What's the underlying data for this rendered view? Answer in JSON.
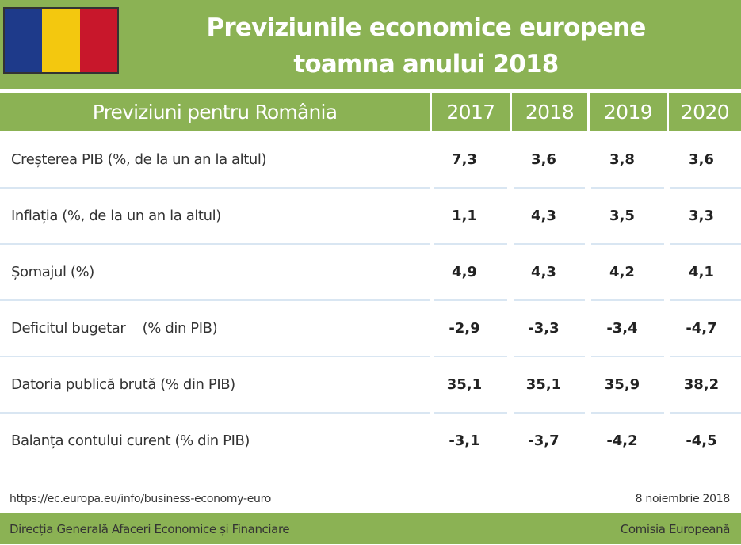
{
  "header": {
    "title_line1": "Previziunile economice europene",
    "title_line2": "toamna anului 2018",
    "flag_colors": [
      "#1e3a8a",
      "#f3c80f",
      "#c8172b"
    ]
  },
  "table": {
    "heading": "Previziuni pentru România",
    "years": [
      "2017",
      "2018",
      "2019",
      "2020"
    ],
    "rows": [
      {
        "label": "Creșterea PIB (%, de la un an la altul)",
        "values": [
          "7,3",
          "3,6",
          "3,8",
          "3,6"
        ]
      },
      {
        "label": "Inflația (%, de la un an la altul)",
        "values": [
          "1,1",
          "4,3",
          "3,5",
          "3,3"
        ]
      },
      {
        "label": "Șomajul (%)",
        "values": [
          "4,9",
          "4,3",
          "4,2",
          "4,1"
        ]
      },
      {
        "label": "Deficitul bugetar    (% din PIB)",
        "values": [
          "-2,9",
          "-3,3",
          "-3,4",
          "-4,7"
        ]
      },
      {
        "label": "Datoria publică brută (% din PIB)",
        "values": [
          "35,1",
          "35,1",
          "35,9",
          "38,2"
        ]
      },
      {
        "label": "Balanța contului curent (% din PIB)",
        "values": [
          "-3,1",
          "-3,7",
          "-4,2",
          "-4,5"
        ]
      }
    ]
  },
  "footer": {
    "url": "https://ec.europa.eu/info/business-economy-euro",
    "date": "8 noiembrie 2018",
    "department": "Direcția Generală Afaceri Economice și Financiare",
    "organization": "Comisia Europeană"
  },
  "colors": {
    "accent_green": "#8bb254",
    "row_rule": "#d9e6f2"
  }
}
